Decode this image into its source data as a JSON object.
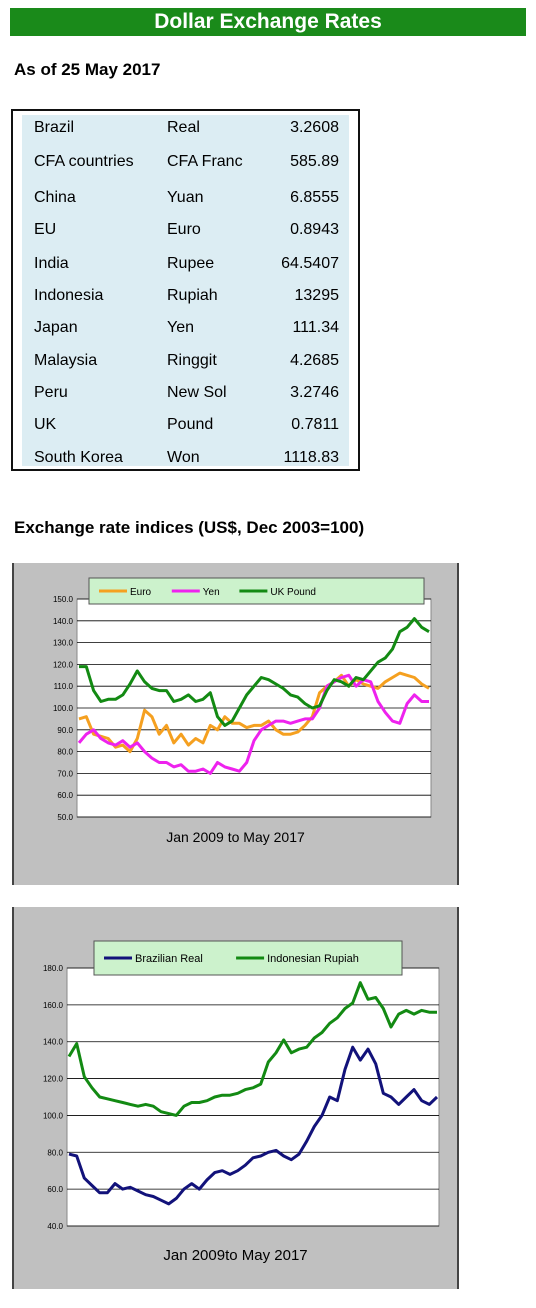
{
  "header": {
    "title": "Dollar Exchange Rates"
  },
  "as_of": "As of 25 May 2017",
  "rates": [
    {
      "country": "Brazil",
      "currency": "Real",
      "value": "3.2608"
    },
    {
      "country": "CFA countries",
      "currency": "CFA Franc",
      "value": "585.89"
    },
    {
      "country": "China",
      "currency": "Yuan",
      "value": "6.8555"
    },
    {
      "country": "EU",
      "currency": "Euro",
      "value": "0.8943"
    },
    {
      "country": "India",
      "currency": "Rupee",
      "value": "64.5407"
    },
    {
      "country": "Indonesia",
      "currency": "Rupiah",
      "value": "13295"
    },
    {
      "country": "Japan",
      "currency": "Yen",
      "value": "111.34"
    },
    {
      "country": "Malaysia",
      "currency": "Ringgit",
      "value": "4.2685"
    },
    {
      "country": "Peru",
      "currency": "New Sol",
      "value": "3.2746"
    },
    {
      "country": "UK",
      "currency": "Pound",
      "value": "0.7811"
    },
    {
      "country": "South Korea",
      "currency": "Won",
      "value": "1118.83"
    }
  ],
  "indices_title": "Exchange rate indices (US$, Dec 2003=100)",
  "chart_data": [
    {
      "type": "line",
      "xlabel": "Jan 2009  to May 2017",
      "ylim": [
        50,
        150
      ],
      "yticks": [
        "50.0",
        "60.0",
        "70.0",
        "80.0",
        "90.0",
        "100.0",
        "110.0",
        "120.0",
        "130.0",
        "140.0",
        "150.0"
      ],
      "legend_position": "top",
      "grid": true,
      "series": [
        {
          "name": "Euro",
          "color": "#f5a020",
          "values": [
            95,
            96,
            88,
            87,
            86,
            82,
            83,
            80,
            86,
            99,
            96,
            88,
            92,
            84,
            88,
            83,
            86,
            84,
            92,
            90,
            96,
            93,
            93,
            91,
            92,
            92,
            94,
            90,
            88,
            88,
            89,
            92,
            96,
            107,
            110,
            112,
            115,
            110,
            113,
            111,
            110,
            109,
            112,
            114,
            116,
            115,
            114,
            111,
            109
          ]
        },
        {
          "name": "Yen",
          "color": "#ee22ee",
          "values": [
            84,
            88,
            90,
            86,
            84,
            83,
            85,
            82,
            84,
            80,
            77,
            75,
            75,
            73,
            74,
            71,
            71,
            72,
            70,
            75,
            73,
            72,
            71,
            75,
            85,
            90,
            92,
            94,
            94,
            93,
            94,
            95,
            95,
            100,
            110,
            112,
            114,
            115,
            110,
            113,
            112,
            103,
            98,
            94,
            93,
            102,
            106,
            103,
            103
          ]
        },
        {
          "name": "UK Pound",
          "color": "#138a13",
          "values": [
            119,
            119,
            108,
            103,
            104,
            104,
            106,
            111,
            117,
            112,
            109,
            108,
            108,
            103,
            104,
            106,
            103,
            104,
            107,
            96,
            92,
            94,
            100,
            106,
            110,
            114,
            113,
            111,
            109,
            106,
            105,
            102,
            100,
            101,
            108,
            113,
            112,
            110,
            114,
            113,
            117,
            121,
            123,
            127,
            135,
            137,
            141,
            137,
            135
          ]
        }
      ]
    },
    {
      "type": "line",
      "xlabel": "Jan 2009to May 2017",
      "ylim": [
        40,
        180
      ],
      "yticks": [
        "40.0",
        "60.0",
        "80.0",
        "100.0",
        "120.0",
        "140.0",
        "160.0",
        "180.0"
      ],
      "legend_position": "top",
      "grid": true,
      "series": [
        {
          "name": "Brazilian Real",
          "color": "#12127a",
          "values": [
            79,
            78,
            66,
            62,
            58,
            58,
            63,
            60,
            61,
            59,
            57,
            56,
            54,
            52,
            55,
            60,
            63,
            60,
            65,
            69,
            70,
            68,
            70,
            73,
            77,
            78,
            80,
            81,
            78,
            76,
            79,
            86,
            94,
            100,
            110,
            108,
            125,
            137,
            130,
            136,
            128,
            112,
            110,
            106,
            110,
            114,
            108,
            106,
            110
          ]
        },
        {
          "name": "Indonesian Rupiah",
          "color": "#138a13",
          "values": [
            132,
            139,
            121,
            115,
            110,
            109,
            108,
            107,
            106,
            105,
            106,
            105,
            102,
            101,
            100,
            105,
            107,
            107,
            108,
            110,
            111,
            111,
            112,
            114,
            115,
            117,
            129,
            134,
            141,
            134,
            136,
            137,
            142,
            145,
            150,
            153,
            158,
            161,
            172,
            163,
            164,
            158,
            148,
            155,
            157,
            155,
            157,
            156,
            156
          ]
        }
      ]
    }
  ]
}
